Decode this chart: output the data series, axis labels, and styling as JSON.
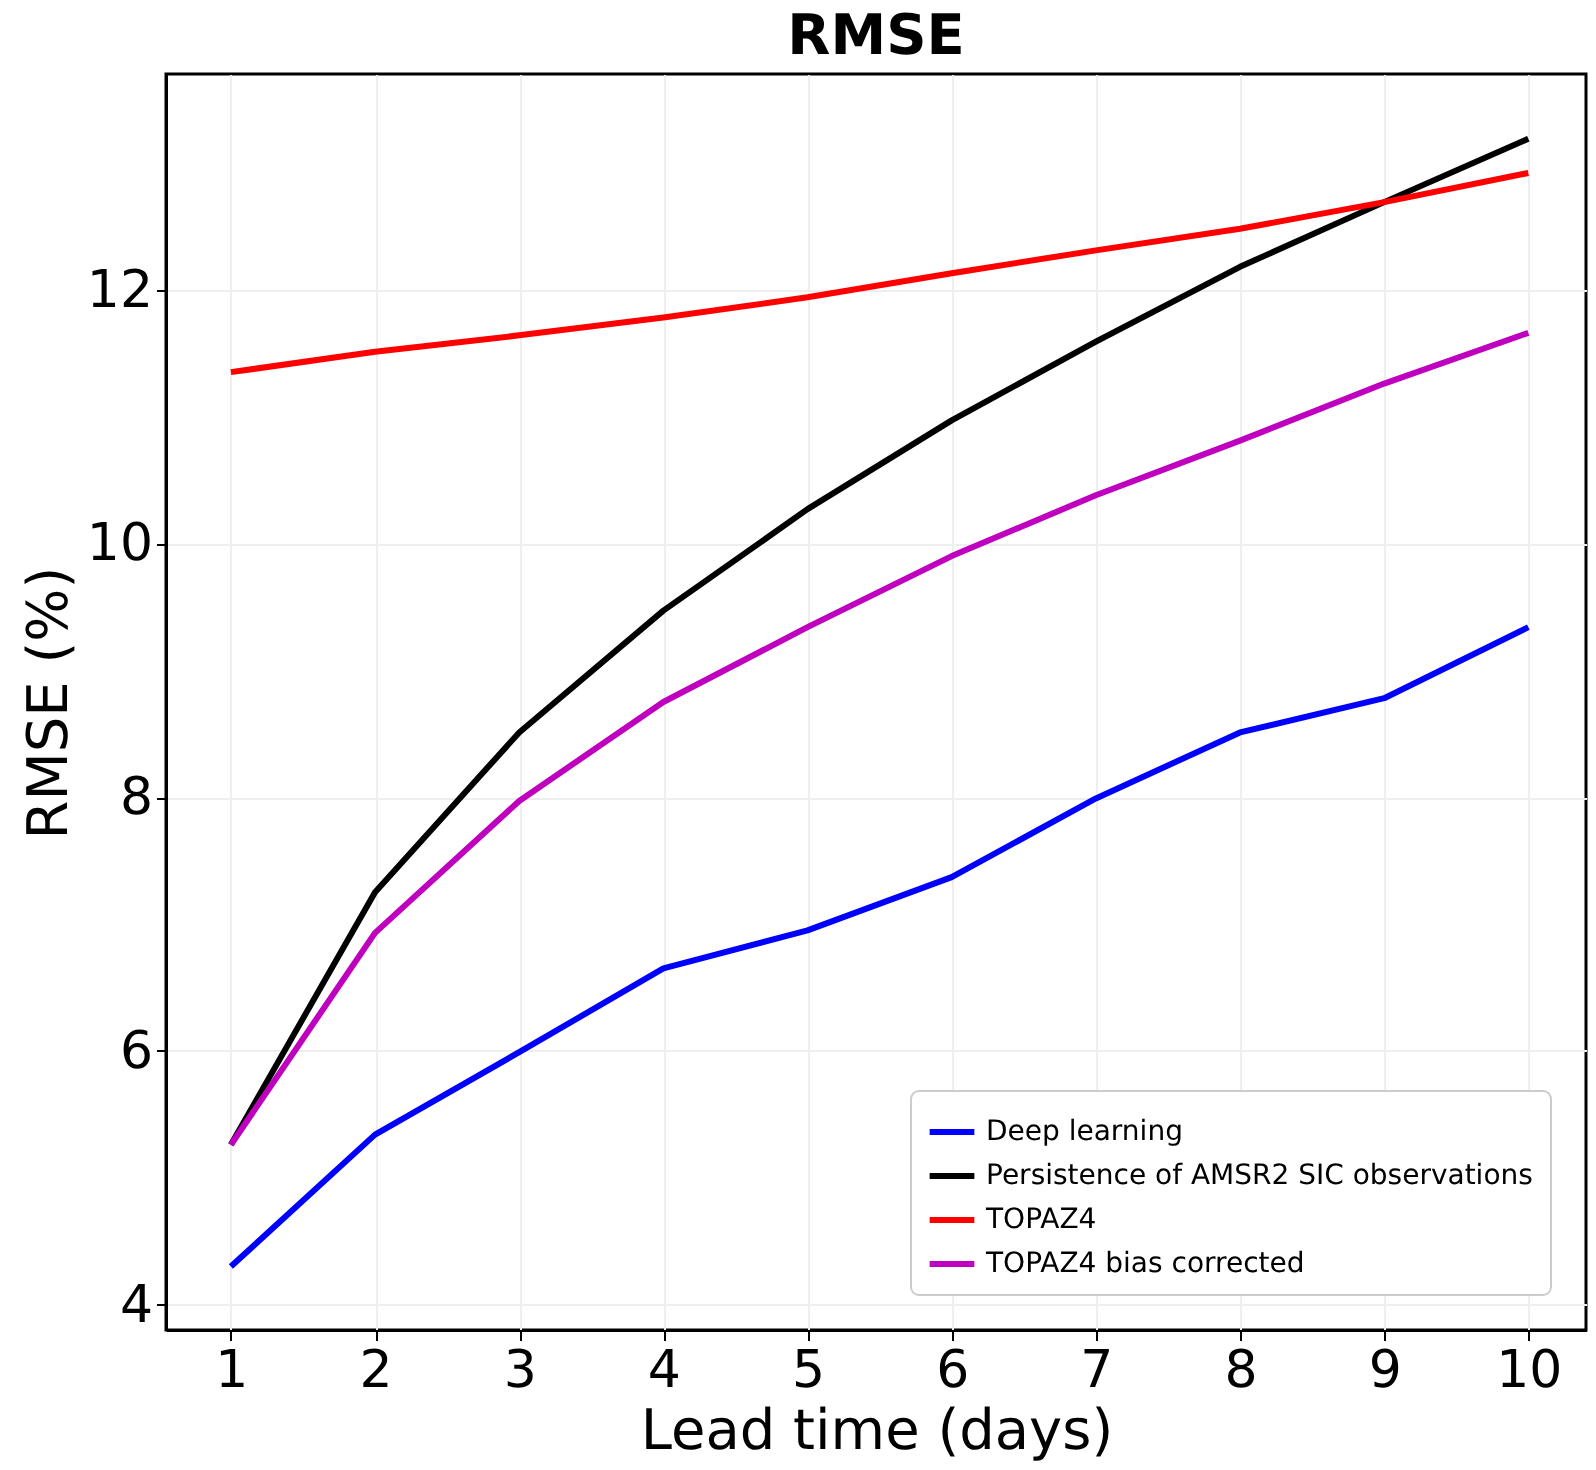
{
  "chart_data": {
    "type": "line",
    "title": "RMSE",
    "xlabel": "Lead time (days)",
    "ylabel": "RMSE (%)",
    "x": [
      1,
      2,
      3,
      4,
      5,
      6,
      7,
      8,
      9,
      10
    ],
    "series": [
      {
        "name": "Deep learning",
        "color": "#0000ff",
        "values": [
          4.3,
          5.34,
          5.99,
          6.65,
          6.95,
          7.37,
          7.99,
          8.51,
          8.78,
          9.34
        ]
      },
      {
        "name": "Persistence of AMSR2 SIC observations",
        "color": "#000000",
        "values": [
          5.26,
          7.25,
          8.51,
          9.47,
          10.27,
          10.97,
          11.59,
          12.18,
          12.69,
          13.19
        ]
      },
      {
        "name": "TOPAZ4",
        "color": "#ff0000",
        "values": [
          11.35,
          11.51,
          11.64,
          11.78,
          11.94,
          12.13,
          12.31,
          12.48,
          12.69,
          12.92
        ]
      },
      {
        "name": "TOPAZ4 bias corrected",
        "color": "#bf00bf",
        "values": [
          5.26,
          6.93,
          7.97,
          8.75,
          9.34,
          9.9,
          10.38,
          10.81,
          11.26,
          11.66
        ]
      }
    ],
    "xlim": [
      0.55,
      10.4
    ],
    "ylim": [
      3.8,
      13.7
    ],
    "xticks": [
      1,
      2,
      3,
      4,
      5,
      6,
      7,
      8,
      9,
      10
    ],
    "yticks": [
      4,
      6,
      8,
      10,
      12
    ],
    "grid": true,
    "legend": "bottom right",
    "marker": "none",
    "line_style": "solid"
  }
}
